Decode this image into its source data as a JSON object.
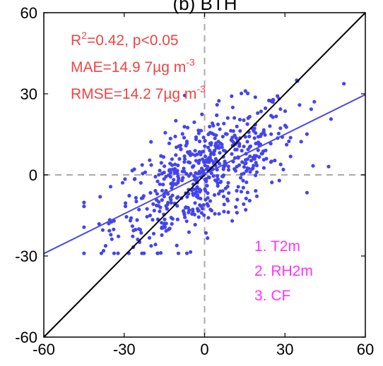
{
  "chart_data": {
    "type": "scatter",
    "title": "(b) BTH",
    "xlabel": "",
    "ylabel": "",
    "xlim": [
      -60,
      60
    ],
    "ylim": [
      -60,
      60
    ],
    "xticks": [
      "-60",
      "-30",
      "0",
      "30",
      "60"
    ],
    "yticks": [
      "60",
      "30",
      "0",
      "-30",
      "-60"
    ],
    "grid": false,
    "stats": {
      "r2_base": "R",
      "r2_exp": "2",
      "r2_rest": "=0.42, p<0.05",
      "mae_base": "MAE=14.9 7µg m",
      "mae_exp": "-3",
      "rmse_base": "RMSE=14.2 7µg m",
      "rmse_exp": "-3"
    },
    "predictors": [
      "1. T2m",
      "2. RH2m",
      "3. CF"
    ],
    "one_to_one_line": {
      "slope": 1,
      "intercept": 0
    },
    "fit_line": {
      "slope": 0.49,
      "intercept": 0.3
    },
    "n_points": 600,
    "x_std": 17,
    "residual_std": 10,
    "colors": {
      "points": "#4444ee",
      "fit_line": "#4a4ae0",
      "one_to_one": "#000000",
      "zero_lines": "#aaaaaa",
      "stats_text": "#ee4444",
      "predictors_text": "#ff33ff"
    }
  }
}
